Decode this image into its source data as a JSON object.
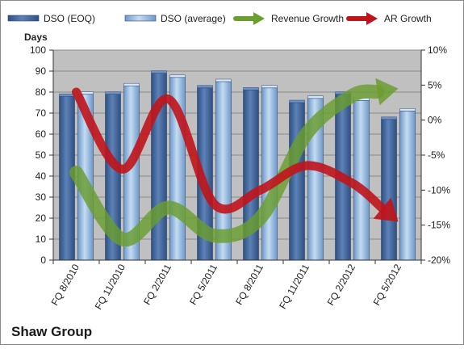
{
  "chart_data": {
    "type": "bar",
    "title": "Shaw Group",
    "ylabel": "Days",
    "ylim": [
      0,
      100
    ],
    "y2lim": [
      -0.2,
      0.1
    ],
    "yticks": [
      "0",
      "10",
      "20",
      "30",
      "40",
      "50",
      "60",
      "70",
      "80",
      "90",
      "100"
    ],
    "y2ticks": [
      "-20%",
      "-15%",
      "-10%",
      "-5%",
      "0%",
      "5%",
      "10%"
    ],
    "categories": [
      "FQ 8/2010",
      "FQ 11/2010",
      "FQ 2/2011",
      "FQ 5/2011",
      "FQ 8/2011",
      "FQ 11/2011",
      "FQ 2/2012",
      "FQ 5/2012"
    ],
    "series": [
      {
        "name": "DSO (EOQ)",
        "kind": "bar",
        "axis": "left",
        "values": [
          78,
          79,
          89,
          82,
          81,
          75,
          79,
          67
        ],
        "color": "#4a6fa5"
      },
      {
        "name": "DSO (average)",
        "kind": "bar",
        "axis": "left",
        "values": [
          79,
          83,
          87,
          85,
          82,
          77,
          76,
          71
        ],
        "color": "#9bbfe3"
      },
      {
        "name": "Revenue Growth",
        "kind": "line-arrow",
        "axis": "right",
        "values": [
          -0.075,
          -0.17,
          -0.125,
          -0.165,
          -0.14,
          -0.02,
          0.035,
          0.045
        ],
        "color": "#6a9e2e"
      },
      {
        "name": "AR Growth",
        "kind": "line-arrow",
        "axis": "right",
        "values": [
          0.04,
          -0.07,
          0.03,
          -0.12,
          -0.1,
          -0.065,
          -0.09,
          -0.145
        ],
        "color": "#c0141b"
      }
    ],
    "plot_background": "#c0c0c0",
    "grid": true,
    "legend": "top"
  }
}
